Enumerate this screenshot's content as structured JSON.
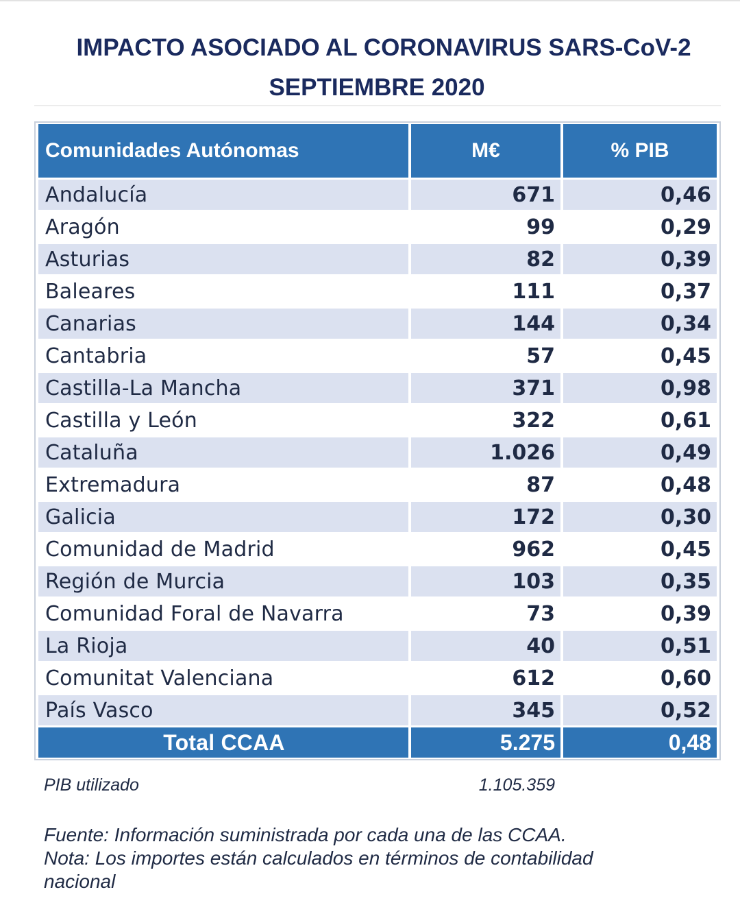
{
  "title": {
    "line1": "IMPACTO ASOCIADO AL CORONAVIRUS SARS-CoV-2",
    "line2": "SEPTIEMBRE 2020"
  },
  "table": {
    "headers": {
      "name": "Comunidades Autónomas",
      "meur": "M€",
      "pib": "% PIB"
    },
    "rows": [
      {
        "name": "Andalucía",
        "meur": "671",
        "pib": "0,46"
      },
      {
        "name": "Aragón",
        "meur": "99",
        "pib": "0,29"
      },
      {
        "name": "Asturias",
        "meur": "82",
        "pib": "0,39"
      },
      {
        "name": "Baleares",
        "meur": "111",
        "pib": "0,37"
      },
      {
        "name": "Canarias",
        "meur": "144",
        "pib": "0,34"
      },
      {
        "name": "Cantabria",
        "meur": "57",
        "pib": "0,45"
      },
      {
        "name": "Castilla-La Mancha",
        "meur": "371",
        "pib": "0,98"
      },
      {
        "name": "Castilla y León",
        "meur": "322",
        "pib": "0,61"
      },
      {
        "name": "Cataluña",
        "meur": "1.026",
        "pib": "0,49"
      },
      {
        "name": "Extremadura",
        "meur": "87",
        "pib": "0,48"
      },
      {
        "name": "Galicia",
        "meur": "172",
        "pib": "0,30"
      },
      {
        "name": "Comunidad de Madrid",
        "meur": "962",
        "pib": "0,45"
      },
      {
        "name": "Región de Murcia",
        "meur": "103",
        "pib": "0,35"
      },
      {
        "name": "Comunidad Foral de Navarra",
        "meur": "73",
        "pib": "0,39"
      },
      {
        "name": "La Rioja",
        "meur": "40",
        "pib": "0,51"
      },
      {
        "name": "Comunitat Valenciana",
        "meur": "612",
        "pib": "0,60"
      },
      {
        "name": "País Vasco",
        "meur": "345",
        "pib": "0,52"
      }
    ],
    "total": {
      "name": "Total CCAA",
      "meur": "5.275",
      "pib": "0,48"
    }
  },
  "pib": {
    "label": "PIB utilizado",
    "value": "1.105.359"
  },
  "notes": {
    "source": "Fuente: Información suministrada por cada una de las CCAA.",
    "note_line1": "Nota: Los importes están calculados en términos de contabilidad",
    "note_line2": "nacional"
  },
  "colors": {
    "header_bg": "#2f74b5",
    "stripe_bg": "#dbe1f0",
    "title_text": "#1a2a5e"
  }
}
